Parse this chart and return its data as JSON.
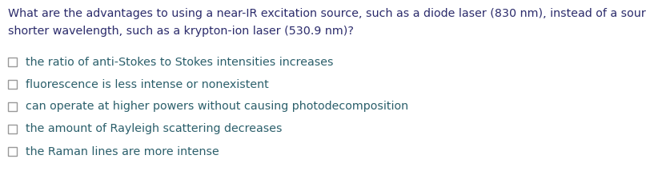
{
  "question_line1": "What are the advantages to using a near-IR excitation source, such as a diode laser (830 nm), instead of a source with a",
  "question_line2": "shorter wavelength, such as a krypton-ion laser (530.9 nm)?",
  "question_color": "#2b2b6b",
  "options": [
    "the ratio of anti-Stokes to Stokes intensities increases",
    "fluorescence is less intense or nonexistent",
    "can operate at higher powers without causing photodecomposition",
    "the amount of Rayleigh scattering decreases",
    "the Raman lines are more intense"
  ],
  "option_color": "#2b5f6b",
  "background_color": "#ffffff",
  "question_fontsize": 10.3,
  "option_fontsize": 10.3,
  "checkbox_color": "#999999",
  "checkbox_linewidth": 1.0
}
